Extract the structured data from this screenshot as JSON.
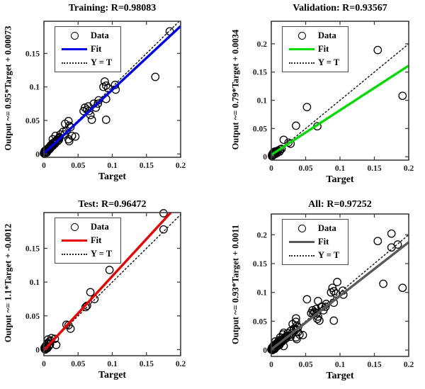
{
  "colors": {
    "axis": "#3f3f3f",
    "marker": "#000000",
    "identity": "#1a1a1a",
    "background": "#ffffff"
  },
  "chart_data": [
    {
      "type": "scatter",
      "title": "Training: R=0.98083",
      "xlabel": "Target",
      "ylabel": "Output ~= 0.95*Target + 0.00073",
      "xlim": [
        0,
        0.2
      ],
      "ylim": [
        -0.005,
        0.198
      ],
      "xticks": [
        0,
        0.05,
        0.1,
        0.15,
        0.2
      ],
      "xtick_labels": [
        "0",
        "0.05",
        "0.1",
        "0.15",
        "0.2"
      ],
      "yticks": [
        0,
        0.05,
        0.1,
        0.15
      ],
      "ytick_labels": [
        "0",
        "0.05",
        "0.1",
        "0.15"
      ],
      "grid": false,
      "legend": [
        "Data",
        "Fit",
        "Y = T"
      ],
      "legend_position": "top-left",
      "fit": {
        "slope": 0.95,
        "intercept": 0.00073,
        "color": "#0000ee"
      },
      "identity": {
        "style": "dotted",
        "color": "#1a1a1a"
      },
      "points": [
        [
          0,
          0.001
        ],
        [
          0.001,
          0
        ],
        [
          0.001,
          0.002
        ],
        [
          0.001,
          0.004
        ],
        [
          0.002,
          0.001
        ],
        [
          0.002,
          0.003
        ],
        [
          0.002,
          0.005
        ],
        [
          0.003,
          0.002
        ],
        [
          0.003,
          0.004
        ],
        [
          0.003,
          0.006
        ],
        [
          0.004,
          0.002
        ],
        [
          0.004,
          0.005
        ],
        [
          0.004,
          0.007
        ],
        [
          0.005,
          0.004
        ],
        [
          0.005,
          0.006
        ],
        [
          0.006,
          0.005
        ],
        [
          0.006,
          0.008
        ],
        [
          0.007,
          0.006
        ],
        [
          0.007,
          0.009
        ],
        [
          0.008,
          0.007
        ],
        [
          0.008,
          0.01
        ],
        [
          0.009,
          0.008
        ],
        [
          0.01,
          0.01
        ],
        [
          0.01,
          0.013
        ],
        [
          0.011,
          0.011
        ],
        [
          0.012,
          0.013
        ],
        [
          0.013,
          0.012
        ],
        [
          0.013,
          0.016
        ],
        [
          0.014,
          0.015
        ],
        [
          0.015,
          0.017
        ],
        [
          0.016,
          0.015
        ],
        [
          0.017,
          0.018
        ],
        [
          0.018,
          0.02
        ],
        [
          0.019,
          0.021
        ],
        [
          0.02,
          0.019
        ],
        [
          0.021,
          0.023
        ],
        [
          0.022,
          0.021
        ],
        [
          0.023,
          0.025
        ],
        [
          0.013,
          0.022
        ],
        [
          0.017,
          0.027
        ],
        [
          0.024,
          0.029
        ],
        [
          0.028,
          0.033
        ],
        [
          0.03,
          0.029
        ],
        [
          0.031,
          0.045
        ],
        [
          0.033,
          0.035
        ],
        [
          0.036,
          0.049
        ],
        [
          0.037,
          0.042
        ],
        [
          0.039,
          0.04
        ],
        [
          0.036,
          0.022
        ],
        [
          0.041,
          0.027
        ],
        [
          0.046,
          0.026
        ],
        [
          0.037,
          0.019
        ],
        [
          0.058,
          0.064
        ],
        [
          0.06,
          0.069
        ],
        [
          0.063,
          0.066
        ],
        [
          0.065,
          0.071
        ],
        [
          0.066,
          0.064
        ],
        [
          0.068,
          0.058
        ],
        [
          0.07,
          0.051
        ],
        [
          0.073,
          0.075
        ],
        [
          0.076,
          0.069
        ],
        [
          0.079,
          0.075
        ],
        [
          0.08,
          0.08
        ],
        [
          0.087,
          0.1
        ],
        [
          0.089,
          0.108
        ],
        [
          0.091,
          0.102
        ],
        [
          0.091,
          0.082
        ],
        [
          0.091,
          0.051
        ],
        [
          0.094,
          0.098
        ],
        [
          0.104,
          0.103
        ],
        [
          0.105,
          0.096
        ],
        [
          0.163,
          0.115
        ],
        [
          0.184,
          0.183
        ]
      ]
    },
    {
      "type": "scatter",
      "title": "Validation: R=0.93567",
      "xlabel": "Target",
      "ylabel": "Output ~= 0.79*Target + 0.0034",
      "xlim": [
        0,
        0.2
      ],
      "ylim": [
        -0.006,
        0.24
      ],
      "xticks": [
        0,
        0.05,
        0.1,
        0.15,
        0.2
      ],
      "xtick_labels": [
        "0",
        "0.05",
        "0.1",
        "0.15",
        "0.2"
      ],
      "yticks": [
        0,
        0.05,
        0.1,
        0.15,
        0.2
      ],
      "ytick_labels": [
        "0",
        "0.05",
        "0.1",
        "0.15",
        "0.2"
      ],
      "grid": false,
      "legend": [
        "Data",
        "Fit",
        "Y = T"
      ],
      "legend_position": "top-left",
      "fit": {
        "slope": 0.79,
        "intercept": 0.0034,
        "color": "#00dd00"
      },
      "identity": {
        "style": "dotted",
        "color": "#1a1a1a"
      },
      "points": [
        [
          0.001,
          0.001
        ],
        [
          0.001,
          0.003
        ],
        [
          0.002,
          0.002
        ],
        [
          0.002,
          0.005
        ],
        [
          0.003,
          0.003
        ],
        [
          0.003,
          0.007
        ],
        [
          0.004,
          0.004
        ],
        [
          0.005,
          0.006
        ],
        [
          0.005,
          0.009
        ],
        [
          0.006,
          0.005
        ],
        [
          0.007,
          0.008
        ],
        [
          0.008,
          0.01
        ],
        [
          0.009,
          0.007
        ],
        [
          0.01,
          0.011
        ],
        [
          0.012,
          0.009
        ],
        [
          0.013,
          0.013
        ],
        [
          0.015,
          0.014
        ],
        [
          0.018,
          0.03
        ],
        [
          0.025,
          0.025
        ],
        [
          0.028,
          0.023
        ],
        [
          0.036,
          0.055
        ],
        [
          0.052,
          0.088
        ],
        [
          0.067,
          0.054
        ],
        [
          0.155,
          0.189
        ],
        [
          0.191,
          0.108
        ]
      ]
    },
    {
      "type": "scatter",
      "title": "Test: R=0.96472",
      "xlabel": "Target",
      "ylabel": "Output ~= 1.1*Target + -0.0012",
      "xlim": [
        0,
        0.2
      ],
      "ylim": [
        -0.009,
        0.203
      ],
      "xticks": [
        0,
        0.05,
        0.1,
        0.15,
        0.2
      ],
      "xtick_labels": [
        "0",
        "0.05",
        "0.1",
        "0.15",
        "0.2"
      ],
      "yticks": [
        0,
        0.05,
        0.1,
        0.15
      ],
      "ytick_labels": [
        "0",
        "0.05",
        "0.1",
        "0.15"
      ],
      "grid": false,
      "legend": [
        "Data",
        "Fit",
        "Y = T"
      ],
      "legend_position": "top-left",
      "fit": {
        "slope": 1.1,
        "intercept": -0.0012,
        "color": "#ee0000"
      },
      "identity": {
        "style": "dotted",
        "color": "#1a1a1a"
      },
      "points": [
        [
          0.001,
          0.001
        ],
        [
          0.001,
          0.003
        ],
        [
          0.002,
          0
        ],
        [
          0.002,
          0.004
        ],
        [
          0.003,
          0.002
        ],
        [
          0.003,
          0.006
        ],
        [
          0.004,
          0.004
        ],
        [
          0.005,
          0.002
        ],
        [
          0.005,
          0.008
        ],
        [
          0.006,
          0.01
        ],
        [
          0.006,
          0.015
        ],
        [
          0.007,
          0.005
        ],
        [
          0.008,
          0.012
        ],
        [
          0.009,
          0.008
        ],
        [
          0.01,
          0.013
        ],
        [
          0.011,
          0.017
        ],
        [
          0.016,
          0.016
        ],
        [
          0.018,
          0.007
        ],
        [
          0.033,
          0.037
        ],
        [
          0.036,
          0.036
        ],
        [
          0.039,
          0.031
        ],
        [
          0.061,
          0.063
        ],
        [
          0.063,
          0.065
        ],
        [
          0.068,
          0.085
        ],
        [
          0.074,
          0.075
        ],
        [
          0.096,
          0.118
        ],
        [
          0.175,
          0.178
        ],
        [
          0.175,
          0.202
        ]
      ]
    },
    {
      "type": "scatter",
      "title": "All: R=0.97252",
      "xlabel": "Target",
      "ylabel": "Output ~= 0.93*Target + 0.0011",
      "xlim": [
        0,
        0.2
      ],
      "ylim": [
        -0.011,
        0.236
      ],
      "xticks": [
        0,
        0.05,
        0.1,
        0.15,
        0.2
      ],
      "xtick_labels": [
        "0",
        "0.05",
        "0.1",
        "0.15",
        "0.2"
      ],
      "yticks": [
        0,
        0.05,
        0.1,
        0.15,
        0.2
      ],
      "ytick_labels": [
        "0",
        "0.05",
        "0.1",
        "0.15",
        "0.2"
      ],
      "grid": false,
      "legend": [
        "Data",
        "Fit",
        "Y = T"
      ],
      "legend_position": "top-left",
      "fit": {
        "slope": 0.93,
        "intercept": 0.0011,
        "color": "#595959"
      },
      "identity": {
        "style": "dotted",
        "color": "#1a1a1a"
      },
      "points": [
        [
          0,
          0.001
        ],
        [
          0.001,
          0
        ],
        [
          0.001,
          0.002
        ],
        [
          0.001,
          0.004
        ],
        [
          0.002,
          0.001
        ],
        [
          0.002,
          0.003
        ],
        [
          0.002,
          0.005
        ],
        [
          0.003,
          0.002
        ],
        [
          0.003,
          0.004
        ],
        [
          0.003,
          0.006
        ],
        [
          0.004,
          0.002
        ],
        [
          0.004,
          0.005
        ],
        [
          0.004,
          0.007
        ],
        [
          0.005,
          0.004
        ],
        [
          0.005,
          0.006
        ],
        [
          0.006,
          0.005
        ],
        [
          0.006,
          0.008
        ],
        [
          0.007,
          0.006
        ],
        [
          0.007,
          0.009
        ],
        [
          0.008,
          0.007
        ],
        [
          0.008,
          0.01
        ],
        [
          0.009,
          0.008
        ],
        [
          0.01,
          0.01
        ],
        [
          0.01,
          0.013
        ],
        [
          0.011,
          0.011
        ],
        [
          0.012,
          0.013
        ],
        [
          0.013,
          0.012
        ],
        [
          0.013,
          0.016
        ],
        [
          0.014,
          0.015
        ],
        [
          0.015,
          0.017
        ],
        [
          0.016,
          0.015
        ],
        [
          0.017,
          0.018
        ],
        [
          0.018,
          0.02
        ],
        [
          0.019,
          0.021
        ],
        [
          0.02,
          0.019
        ],
        [
          0.021,
          0.023
        ],
        [
          0.022,
          0.021
        ],
        [
          0.023,
          0.025
        ],
        [
          0.013,
          0.022
        ],
        [
          0.017,
          0.027
        ],
        [
          0.024,
          0.029
        ],
        [
          0.028,
          0.033
        ],
        [
          0.03,
          0.029
        ],
        [
          0.031,
          0.045
        ],
        [
          0.033,
          0.035
        ],
        [
          0.036,
          0.049
        ],
        [
          0.037,
          0.042
        ],
        [
          0.039,
          0.04
        ],
        [
          0.036,
          0.022
        ],
        [
          0.041,
          0.027
        ],
        [
          0.046,
          0.026
        ],
        [
          0.037,
          0.019
        ],
        [
          0.058,
          0.064
        ],
        [
          0.06,
          0.069
        ],
        [
          0.063,
          0.066
        ],
        [
          0.065,
          0.071
        ],
        [
          0.066,
          0.064
        ],
        [
          0.068,
          0.058
        ],
        [
          0.07,
          0.051
        ],
        [
          0.073,
          0.075
        ],
        [
          0.076,
          0.069
        ],
        [
          0.079,
          0.075
        ],
        [
          0.08,
          0.08
        ],
        [
          0.087,
          0.1
        ],
        [
          0.089,
          0.108
        ],
        [
          0.091,
          0.102
        ],
        [
          0.091,
          0.082
        ],
        [
          0.091,
          0.051
        ],
        [
          0.094,
          0.098
        ],
        [
          0.104,
          0.103
        ],
        [
          0.105,
          0.096
        ],
        [
          0.163,
          0.115
        ],
        [
          0.184,
          0.183
        ],
        [
          0.001,
          0.001
        ],
        [
          0.001,
          0.003
        ],
        [
          0.002,
          0.002
        ],
        [
          0.002,
          0.005
        ],
        [
          0.003,
          0.003
        ],
        [
          0.003,
          0.007
        ],
        [
          0.004,
          0.004
        ],
        [
          0.005,
          0.006
        ],
        [
          0.005,
          0.009
        ],
        [
          0.006,
          0.005
        ],
        [
          0.007,
          0.008
        ],
        [
          0.008,
          0.01
        ],
        [
          0.009,
          0.007
        ],
        [
          0.01,
          0.011
        ],
        [
          0.012,
          0.009
        ],
        [
          0.013,
          0.013
        ],
        [
          0.015,
          0.014
        ],
        [
          0.018,
          0.03
        ],
        [
          0.025,
          0.025
        ],
        [
          0.028,
          0.023
        ],
        [
          0.036,
          0.055
        ],
        [
          0.052,
          0.088
        ],
        [
          0.067,
          0.054
        ],
        [
          0.155,
          0.189
        ],
        [
          0.191,
          0.108
        ],
        [
          0.001,
          0.001
        ],
        [
          0.001,
          0.003
        ],
        [
          0.002,
          0
        ],
        [
          0.002,
          0.004
        ],
        [
          0.003,
          0.002
        ],
        [
          0.003,
          0.006
        ],
        [
          0.004,
          0.004
        ],
        [
          0.005,
          0.002
        ],
        [
          0.005,
          0.008
        ],
        [
          0.006,
          0.01
        ],
        [
          0.006,
          0.015
        ],
        [
          0.007,
          0.005
        ],
        [
          0.008,
          0.012
        ],
        [
          0.009,
          0.008
        ],
        [
          0.01,
          0.013
        ],
        [
          0.011,
          0.017
        ],
        [
          0.016,
          0.016
        ],
        [
          0.018,
          0.007
        ],
        [
          0.033,
          0.037
        ],
        [
          0.036,
          0.036
        ],
        [
          0.039,
          0.031
        ],
        [
          0.061,
          0.063
        ],
        [
          0.063,
          0.065
        ],
        [
          0.068,
          0.085
        ],
        [
          0.074,
          0.075
        ],
        [
          0.096,
          0.118
        ],
        [
          0.175,
          0.178
        ],
        [
          0.175,
          0.202
        ]
      ]
    }
  ]
}
